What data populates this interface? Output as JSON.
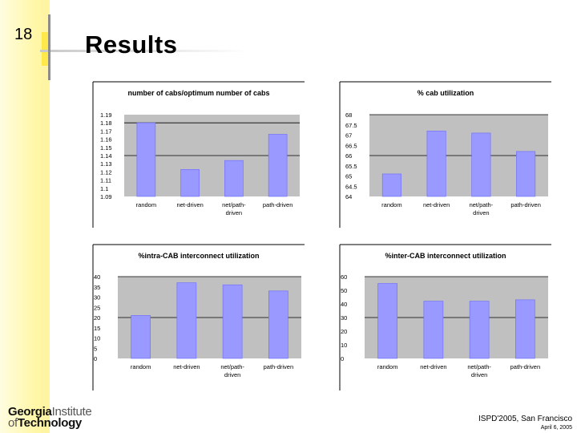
{
  "slide": {
    "number": "18",
    "title": "Results"
  },
  "footer": {
    "venue": "ISPD'2005, San Francisco",
    "date": "April 6, 2005"
  },
  "logo": {
    "line1_bold": "Georgia",
    "line1_light": "Institute",
    "line2_light": "of",
    "line2_bold": "Technology"
  },
  "colors": {
    "bar": "#9999ff",
    "plot_bg": "#c0c0c0",
    "grid": "#000000"
  },
  "chart_data": [
    {
      "type": "bar",
      "title": "number of cabs/optimum number of cabs",
      "categories": [
        "random",
        "net-driven",
        "net/path-driven",
        "path-driven"
      ],
      "category_lines": [
        [
          "random"
        ],
        [
          "net-driven"
        ],
        [
          "net/path-",
          "driven"
        ],
        [
          "path-driven"
        ]
      ],
      "values": [
        1.18,
        1.123,
        1.134,
        1.166
      ],
      "ylim": [
        1.09,
        1.19
      ],
      "yticks": [
        1.09,
        1.1,
        1.11,
        1.12,
        1.13,
        1.14,
        1.15,
        1.16,
        1.17,
        1.18,
        1.19
      ],
      "ytick_labels": [
        "1.09",
        "1.1",
        "1.11",
        "1.12",
        "1.13",
        "1.14",
        "1.15",
        "1.16",
        "1.17",
        "1.18",
        "1.19"
      ],
      "gridlines": [
        1.14,
        1.18
      ]
    },
    {
      "type": "bar",
      "title": "% cab utilization",
      "categories": [
        "random",
        "net-driven",
        "net/path-driven",
        "path-driven"
      ],
      "category_lines": [
        [
          "random"
        ],
        [
          "net-driven"
        ],
        [
          "net/path-",
          "driven"
        ],
        [
          "path-driven"
        ]
      ],
      "values": [
        65.1,
        67.2,
        67.1,
        66.2
      ],
      "ylim": [
        64,
        68
      ],
      "yticks": [
        64,
        64.5,
        65,
        65.5,
        66,
        66.5,
        67,
        67.5,
        68
      ],
      "ytick_labels": [
        "64",
        "64.5",
        "65",
        "65.5",
        "66",
        "66.5",
        "67",
        "67.5",
        "68"
      ],
      "gridlines": [
        66,
        68
      ]
    },
    {
      "type": "bar",
      "title": "%intra-CAB interconnect utilization",
      "categories": [
        "random",
        "net-driven",
        "net/path-driven",
        "path-driven"
      ],
      "category_lines": [
        [
          "random"
        ],
        [
          "net-driven"
        ],
        [
          "net/path-",
          "driven"
        ],
        [
          "path-driven"
        ]
      ],
      "values": [
        21,
        37,
        36,
        33
      ],
      "ylim": [
        0,
        40
      ],
      "yticks": [
        0,
        5,
        10,
        15,
        20,
        25,
        30,
        35,
        40
      ],
      "ytick_labels": [
        "0",
        "5",
        "10",
        "15",
        "20",
        "25",
        "30",
        "35",
        "40"
      ],
      "gridlines": [
        20,
        40
      ]
    },
    {
      "type": "bar",
      "title": "%inter-CAB interconnect utilization",
      "categories": [
        "random",
        "net-driven",
        "net/path-driven",
        "path-driven"
      ],
      "category_lines": [
        [
          "random"
        ],
        [
          "net-driven"
        ],
        [
          "net/path-",
          "driven"
        ],
        [
          "path-driven"
        ]
      ],
      "values": [
        55,
        42,
        42,
        43
      ],
      "ylim": [
        0,
        60
      ],
      "yticks": [
        0,
        10,
        20,
        30,
        40,
        50,
        60
      ],
      "ytick_labels": [
        "0",
        "10",
        "20",
        "30",
        "40",
        "50",
        "60"
      ],
      "gridlines": [
        30,
        60
      ]
    }
  ]
}
